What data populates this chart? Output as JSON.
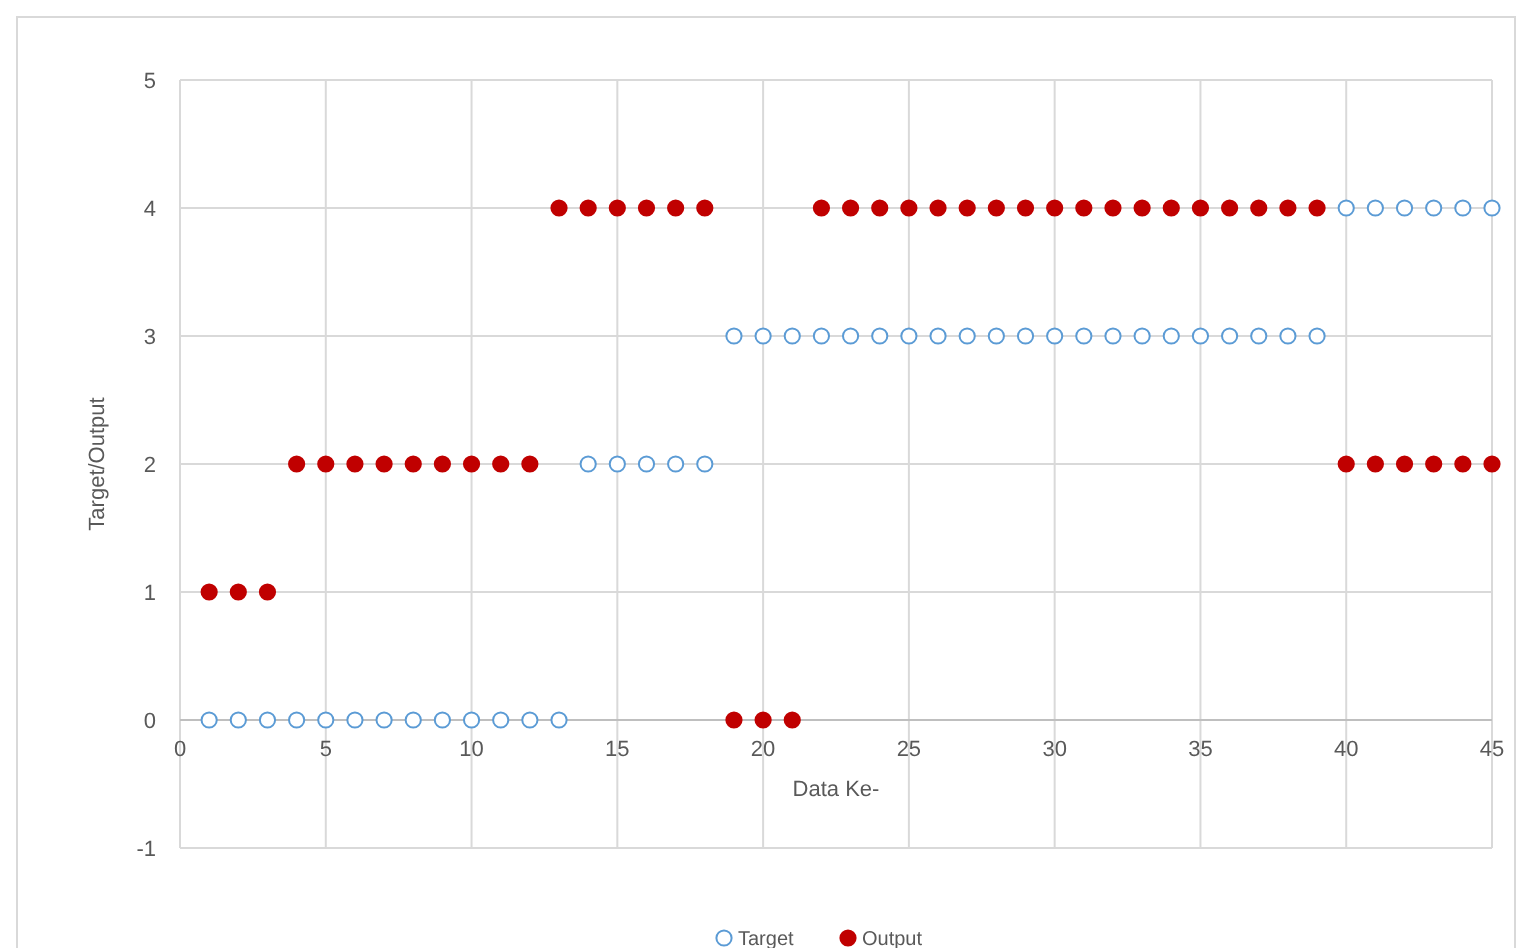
{
  "chart_data": {
    "type": "scatter",
    "xlabel": "Data Ke-",
    "ylabel": "Target/Output",
    "x": [
      1,
      2,
      3,
      4,
      5,
      6,
      7,
      8,
      9,
      10,
      11,
      12,
      13,
      14,
      15,
      16,
      17,
      18,
      19,
      20,
      21,
      22,
      23,
      24,
      25,
      26,
      27,
      28,
      29,
      30,
      31,
      32,
      33,
      34,
      35,
      36,
      37,
      38,
      39,
      40,
      41,
      42,
      43,
      44,
      45
    ],
    "series": [
      {
        "name": "Target",
        "color": "#5b9bd5",
        "values": [
          0,
          0,
          0,
          0,
          0,
          0,
          0,
          0,
          0,
          0,
          0,
          0,
          0,
          2,
          2,
          2,
          2,
          2,
          3,
          3,
          3,
          3,
          3,
          3,
          3,
          3,
          3,
          3,
          3,
          3,
          3,
          3,
          3,
          3,
          3,
          3,
          3,
          3,
          3,
          4,
          4,
          4,
          4,
          4,
          4
        ]
      },
      {
        "name": "Output",
        "color": "#c00000",
        "values": [
          1,
          1,
          1,
          2,
          2,
          2,
          2,
          2,
          2,
          2,
          2,
          2,
          4,
          4,
          4,
          4,
          4,
          4,
          0,
          0,
          0,
          4,
          4,
          4,
          4,
          4,
          4,
          4,
          4,
          4,
          4,
          4,
          4,
          4,
          4,
          4,
          4,
          4,
          4,
          2,
          2,
          2,
          2,
          2,
          2
        ]
      }
    ],
    "xlim": [
      0,
      45
    ],
    "xticks": [
      0,
      5,
      10,
      15,
      20,
      25,
      30,
      35,
      40,
      45
    ],
    "ylim": [
      -1,
      5
    ],
    "yticks": [
      -1,
      0,
      1,
      2,
      3,
      4,
      5
    ],
    "grid": true,
    "legend": "bottom",
    "marker": "circle"
  }
}
